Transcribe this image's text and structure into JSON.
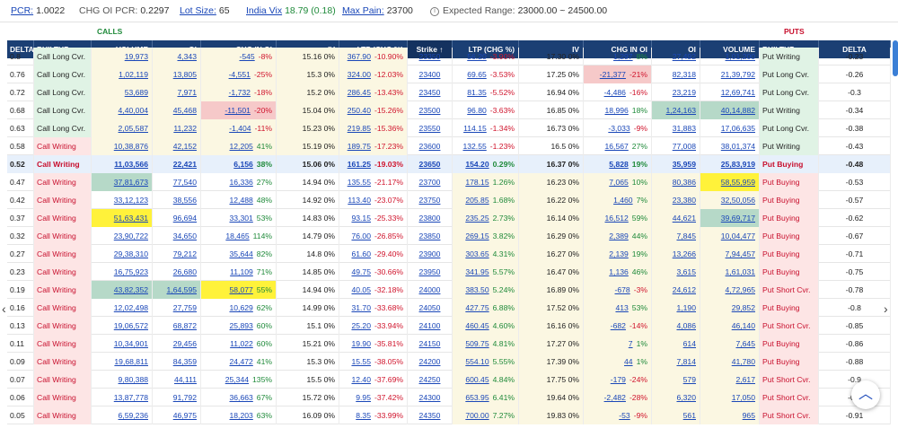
{
  "topbar": {
    "pcr_label": "PCR:",
    "pcr_value": "1.0022",
    "chg_oi_pcr_label": "CHG OI PCR:",
    "chg_oi_pcr_value": "0.2297",
    "lot_size_label": "Lot Size:",
    "lot_size_value": "65",
    "india_vix_label": "India Vix",
    "india_vix_value": "18.79 (0.18)",
    "max_pain_label": "Max Pain:",
    "max_pain_value": "23700",
    "expected_range_label": "Expected Range:",
    "expected_range_value": "23000.00 ~ 24500.00",
    "info_icon": "info-icon"
  },
  "sides": {
    "calls": "CALLS",
    "puts": "PUTS"
  },
  "headers": [
    "DELTA",
    "BUILTUP",
    "VOLUME",
    "OI",
    "CHG IN OI",
    "IV",
    "LTP (CHG %)",
    "Strike ↑",
    "LTP (CHG %)",
    "IV",
    "CHG IN OI",
    "OI",
    "VOLUME",
    "BUILTUP",
    "DELTA"
  ],
  "partial_row": {
    "delta": "0.8",
    "builtup": "Call Long Cvr.",
    "volume": "19,973",
    "oi": "4,343",
    "chg": "-545",
    "chgp": "-8%",
    "iv": "15.16 0%",
    "ltp": "367.90",
    "ltpp": "-10.90%",
    "strike": "23350",
    "pltp": "56.20",
    "pltpp": "-3.90%",
    "piv": "17.30 0%",
    "pchg": "1,297",
    "pchgp": "8%",
    "poi": "27,492",
    "pvol": "1,01,200",
    "pbuilt": "Put Writing",
    "pdelta": "-0.23"
  },
  "rows": [
    {
      "delta": "0.76",
      "builtup": "Call Long Cvr.",
      "volume": "1,02,119",
      "oi": "13,805",
      "chg": "-4,551",
      "chgp": "-25%",
      "iv": "15.3 0%",
      "ltp": "324.00",
      "ltpp": "-12.03%",
      "strike": "23400",
      "pltp": "69.65",
      "pltpp": "-3.53%",
      "piv": "17.25 0%",
      "pchg": "-21,377",
      "pchgp": "-21%",
      "poi": "82,318",
      "pvol": "21,39,792",
      "pbuilt": "Put Long Cvr.",
      "pdelta": "-0.26"
    },
    {
      "delta": "0.72",
      "builtup": "Call Long Cvr.",
      "volume": "53,689",
      "oi": "7,971",
      "chg": "-1,732",
      "chgp": "-18%",
      "iv": "15.2 0%",
      "ltp": "286.45",
      "ltpp": "-13.43%",
      "strike": "23450",
      "pltp": "81.35",
      "pltpp": "-5.52%",
      "piv": "16.94 0%",
      "pchg": "-4,486",
      "pchgp": "-16%",
      "poi": "23,219",
      "pvol": "12,69,741",
      "pbuilt": "Put Long Cvr.",
      "pdelta": "-0.3"
    },
    {
      "delta": "0.68",
      "builtup": "Call Long Cvr.",
      "volume": "4,40,004",
      "oi": "45,468",
      "chg": "-11,501",
      "chgp": "-20%",
      "iv": "15.04 0%",
      "ltp": "250.40",
      "ltpp": "-15.26%",
      "strike": "23500",
      "pltp": "96.80",
      "pltpp": "-3.63%",
      "piv": "16.85 0%",
      "pchg": "18,996",
      "pchgp": "18%",
      "poi": "1,24,163",
      "pvol": "40,14,882",
      "pbuilt": "Put Writing",
      "pdelta": "-0.34"
    },
    {
      "delta": "0.63",
      "builtup": "Call Long Cvr.",
      "volume": "2,05,587",
      "oi": "11,232",
      "chg": "-1,404",
      "chgp": "-11%",
      "iv": "15.23 0%",
      "ltp": "219.85",
      "ltpp": "-15.36%",
      "strike": "23550",
      "pltp": "114.15",
      "pltpp": "-1.34%",
      "piv": "16.73 0%",
      "pchg": "-3,033",
      "chgsign": "",
      "pchgp": "-9%",
      "poi": "31,883",
      "pvol": "17,06,635",
      "pbuilt": "Put Long Cvr.",
      "pdelta": "-0.38"
    },
    {
      "delta": "0.58",
      "builtup": "Call Writing",
      "volume": "10,38,876",
      "oi": "42,152",
      "chg": "12,205",
      "chgp": "41%",
      "iv": "15.19 0%",
      "ltp": "189.75",
      "ltpp": "-17.23%",
      "strike": "23600",
      "pltp": "132.55",
      "pltpp": "-1.23%",
      "piv": "16.5 0%",
      "pchg": "16,567",
      "pchgp": "27%",
      "poi": "77,008",
      "pvol": "38,01,374",
      "pbuilt": "Put Writing",
      "pdelta": "-0.43"
    },
    {
      "delta": "0.52",
      "builtup": "Call Writing",
      "volume": "11,03,566",
      "oi": "22,421",
      "chg": "6,156",
      "chgp": "38%",
      "iv": "15.06 0%",
      "ltp": "161.25",
      "ltpp": "-19.03%",
      "strike": "23650",
      "pltp": "154.20",
      "pltpp": "0.29%",
      "piv": "16.37 0%",
      "pchg": "5,828",
      "pchgp": "19%",
      "poi": "35,959",
      "pvol": "25,83,919",
      "pbuilt": "Put Buying",
      "pdelta": "-0.48"
    },
    {
      "delta": "0.47",
      "builtup": "Call Writing",
      "volume": "37,81,673",
      "oi": "77,540",
      "chg": "16,336",
      "chgp": "27%",
      "iv": "14.94 0%",
      "ltp": "135.55",
      "ltpp": "-21.17%",
      "strike": "23700",
      "pltp": "178.15",
      "pltpp": "1.26%",
      "piv": "16.23 0%",
      "pchg": "7,065",
      "pchgp": "10%",
      "poi": "80,386",
      "pvol": "58,55,959",
      "pbuilt": "Put Buying",
      "pdelta": "-0.53"
    },
    {
      "delta": "0.42",
      "builtup": "Call Writing",
      "volume": "33,12,123",
      "oi": "38,556",
      "chg": "12,488",
      "chgp": "48%",
      "iv": "14.92 0%",
      "ltp": "113.40",
      "ltpp": "-23.07%",
      "strike": "23750",
      "pltp": "205.85",
      "pltpp": "1.68%",
      "piv": "16.22 0%",
      "pchg": "1,460",
      "pchgp": "7%",
      "poi": "23,380",
      "pvol": "32,50,056",
      "pbuilt": "Put Buying",
      "pdelta": "-0.57"
    },
    {
      "delta": "0.37",
      "builtup": "Call Writing",
      "volume": "51,63,431",
      "oi": "96,694",
      "chg": "33,301",
      "chgp": "53%",
      "iv": "14.83 0%",
      "ltp": "93.15",
      "ltpp": "-25.33%",
      "strike": "23800",
      "pltp": "235.25",
      "pltpp": "2.73%",
      "piv": "16.14 0%",
      "pchg": "16,512",
      "pchgp": "59%",
      "poi": "44,621",
      "pvol": "39,69,717",
      "pbuilt": "Put Buying",
      "pdelta": "-0.62"
    },
    {
      "delta": "0.32",
      "builtup": "Call Writing",
      "volume": "23,90,722",
      "oi": "34,650",
      "chg": "18,465",
      "chgp": "114%",
      "iv": "14.79 0%",
      "ltp": "76.00",
      "ltpp": "-26.85%",
      "strike": "23850",
      "pltp": "269.15",
      "pltpp": "3.82%",
      "piv": "16.29 0%",
      "pchg": "2,389",
      "pchgp": "44%",
      "poi": "7,845",
      "pvol": "10,04,477",
      "pbuilt": "Put Buying",
      "pdelta": "-0.67"
    },
    {
      "delta": "0.27",
      "builtup": "Call Writing",
      "volume": "29,38,310",
      "oi": "79,212",
      "chg": "35,644",
      "chgp": "82%",
      "iv": "14.8 0%",
      "ltp": "61.60",
      "ltpp": "-29.40%",
      "strike": "23900",
      "pltp": "303.65",
      "pltpp": "4.31%",
      "piv": "16.27 0%",
      "pchg": "2,139",
      "pchgp": "19%",
      "poi": "13,266",
      "pvol": "7,94,457",
      "pbuilt": "Put Buying",
      "pdelta": "-0.71"
    },
    {
      "delta": "0.23",
      "builtup": "Call Writing",
      "volume": "16,75,923",
      "oi": "26,680",
      "chg": "11,109",
      "chgp": "71%",
      "iv": "14.85 0%",
      "ltp": "49.75",
      "ltpp": "-30.66%",
      "strike": "23950",
      "pltp": "341.95",
      "pltpp": "5.57%",
      "piv": "16.47 0%",
      "pchg": "1,136",
      "pchgp": "46%",
      "poi": "3,615",
      "pvol": "1,61,031",
      "pbuilt": "Put Buying",
      "pdelta": "-0.75"
    },
    {
      "delta": "0.19",
      "builtup": "Call Writing",
      "volume": "43,82,352",
      "oi": "1,64,595",
      "chg": "58,077",
      "chgp": "55%",
      "iv": "14.94 0%",
      "ltp": "40.05",
      "ltpp": "-32.18%",
      "strike": "24000",
      "pltp": "383.50",
      "pltpp": "5.24%",
      "piv": "16.89 0%",
      "pchg": "-678",
      "pchgp": "-3%",
      "poi": "24,612",
      "pvol": "4,72,965",
      "pbuilt": "Put Short Cvr.",
      "pdelta": "-0.78"
    },
    {
      "delta": "0.16",
      "builtup": "Call Writing",
      "volume": "12,02,498",
      "oi": "27,759",
      "chg": "10,629",
      "chgp": "62%",
      "iv": "14.99 0%",
      "ltp": "31.70",
      "ltpp": "-33.68%",
      "strike": "24050",
      "pltp": "427.75",
      "pltpp": "6.88%",
      "piv": "17.52 0%",
      "pchg": "413",
      "pchgp": "53%",
      "poi": "1,190",
      "pvol": "29,852",
      "pbuilt": "Put Buying",
      "pdelta": "-0.8"
    },
    {
      "delta": "0.13",
      "builtup": "Call Writing",
      "volume": "19,06,572",
      "oi": "68,872",
      "chg": "25,893",
      "chgp": "60%",
      "iv": "15.1 0%",
      "ltp": "25.20",
      "ltpp": "-33.94%",
      "strike": "24100",
      "pltp": "460.45",
      "pltpp": "4.60%",
      "piv": "16.16 0%",
      "pchg": "-682",
      "pchgp": "-14%",
      "poi": "4,086",
      "pvol": "46,140",
      "pbuilt": "Put Short Cvr.",
      "pdelta": "-0.85"
    },
    {
      "delta": "0.11",
      "builtup": "Call Writing",
      "volume": "10,34,901",
      "oi": "29,456",
      "chg": "11,022",
      "chgp": "60%",
      "iv": "15.21 0%",
      "ltp": "19.90",
      "ltpp": "-35.81%",
      "strike": "24150",
      "pltp": "509.75",
      "pltpp": "4.81%",
      "piv": "17.27 0%",
      "pchg": "7",
      "pchgp": "1%",
      "poi": "614",
      "pvol": "7,645",
      "pbuilt": "Put Buying",
      "pdelta": "-0.86"
    },
    {
      "delta": "0.09",
      "builtup": "Call Writing",
      "volume": "19,68,811",
      "oi": "84,359",
      "chg": "24,472",
      "chgp": "41%",
      "iv": "15.3 0%",
      "ltp": "15.55",
      "ltpp": "-38.05%",
      "strike": "24200",
      "pltp": "554.10",
      "pltpp": "5.55%",
      "piv": "17.39 0%",
      "pchg": "44",
      "pchgp": "1%",
      "poi": "7,814",
      "pvol": "41,780",
      "pbuilt": "Put Buying",
      "pdelta": "-0.88"
    },
    {
      "delta": "0.07",
      "builtup": "Call Writing",
      "volume": "9,80,388",
      "oi": "44,111",
      "chg": "25,344",
      "chgp": "135%",
      "iv": "15.5 0%",
      "ltp": "12.40",
      "ltpp": "-37.69%",
      "strike": "24250",
      "pltp": "600.45",
      "pltpp": "4.84%",
      "piv": "17.75 0%",
      "pchg": "-179",
      "pchgp": "-24%",
      "poi": "579",
      "pvol": "2,617",
      "pbuilt": "Put Short Cvr.",
      "pdelta": "-0.9"
    },
    {
      "delta": "0.06",
      "builtup": "Call Writing",
      "volume": "13,87,778",
      "oi": "91,792",
      "chg": "36,663",
      "chgp": "67%",
      "iv": "15.72 0%",
      "ltp": "9.95",
      "ltpp": "-37.42%",
      "strike": "24300",
      "pltp": "653.95",
      "pltpp": "6.41%",
      "piv": "19.64 0%",
      "pchg": "-2,482",
      "pchgp": "-28%",
      "poi": "6,320",
      "pvol": "17,050",
      "pbuilt": "Put Short Cvr.",
      "pdelta": "-0.9"
    },
    {
      "delta": "0.05",
      "builtup": "Call Writing",
      "volume": "6,59,236",
      "oi": "46,975",
      "chg": "18,203",
      "chgp": "63%",
      "iv": "16.09 0%",
      "ltp": "8.35",
      "ltpp": "-33.99%",
      "strike": "24350",
      "pltp": "700.00",
      "pltpp": "7.27%",
      "piv": "19.83 0%",
      "pchg": "-53",
      "pchgp": "-9%",
      "poi": "561",
      "pvol": "965",
      "pbuilt": "Put Short Cvr.",
      "pdelta": "-0.91"
    }
  ],
  "colors": {
    "header": "#1b3f74",
    "call_green": "#1f8a3a",
    "put_red": "#c8102e",
    "link_blue": "#1a47b8",
    "highlight_yellow": "#fff23a"
  }
}
